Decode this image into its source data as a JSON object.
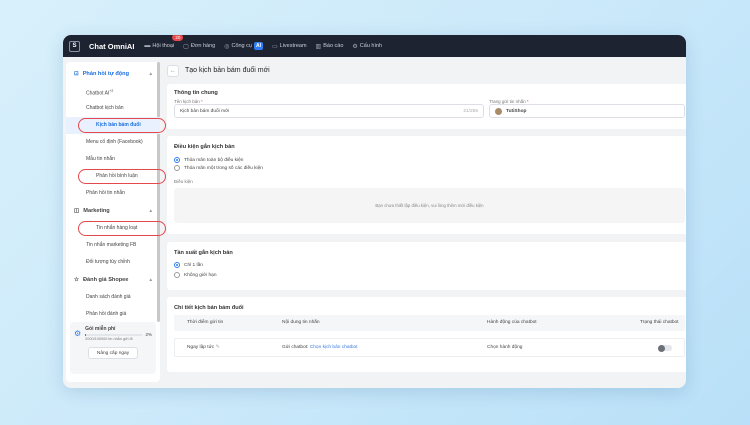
{
  "header": {
    "brand": "Chat OmniAI",
    "nav": [
      {
        "label": "Hội thoại",
        "icon": "chat-icon",
        "badge": "20"
      },
      {
        "label": "Đơn hàng",
        "icon": "order-icon"
      },
      {
        "label": "Công cụ",
        "icon": "tool-icon",
        "tag": "AI"
      },
      {
        "label": "Livestream",
        "icon": "video-icon"
      },
      {
        "label": "Báo cáo",
        "icon": "chart-icon"
      },
      {
        "label": "Cấu hình",
        "icon": "gear-icon"
      }
    ]
  },
  "sidebar": {
    "groups": [
      {
        "label": "Phản hồi tự động",
        "items": [
          "Chatbot AI",
          "Chatbot kịch bản",
          "Kịch bản bám đuổi",
          "Menu cố định (Facebook)",
          "Mẫu tin nhắn",
          "Phản hồi bình luận",
          "Phản hồi tin nhắn"
        ]
      },
      {
        "label": "Marketing",
        "items": [
          "Tin nhắn hàng loạt",
          "Tin nhắn marketing FB",
          "Đối tượng tùy chỉnh"
        ]
      },
      {
        "label": "Đánh giá Shopee",
        "items": [
          "Danh sách đánh giá",
          "Phản hồi đánh giá"
        ]
      }
    ],
    "ai_sup": "+2",
    "plan": {
      "title": "Gói miễn phí",
      "percent": "2%",
      "progress": 2,
      "usage": "2000/100000 tin nhắn gửi đi",
      "upgrade": "Nâng cấp ngay"
    }
  },
  "page": {
    "title": "Tạo kịch bản bám đuổi mới",
    "general": {
      "title": "Thông tin chung",
      "name_label": "Tên kịch bản",
      "name_value": "Kịch bản bám đuổi mới",
      "name_count": "21/255",
      "page_label": "Trang gửi tin nhắn",
      "page_value": "TutiShop",
      "required": "*"
    },
    "conditions": {
      "title": "Điều kiện gắn kịch bản",
      "options": [
        "Thỏa mãn toàn bộ điều kiện",
        "Thỏa mãn một trong số các điều kiện"
      ],
      "selected": 0,
      "cond_label": "Điều kiện",
      "empty": "Bạn chưa thiết lập điều kiện, vui lòng thêm mới điều kiện"
    },
    "frequency": {
      "title": "Tần suất gắn kịch bản",
      "options": [
        "Chỉ 1 lần",
        "Không giới hạn"
      ],
      "selected": 0
    },
    "details": {
      "title": "Chi tiết kịch bản bám đuổi",
      "columns": [
        "Thời điểm gửi tin",
        "Nội dung tin nhắn",
        "Hành động của chatbot",
        "Trạng thái chatbot"
      ],
      "row": {
        "time": "Ngay lập tức",
        "content_prefix": "Gửi chatbot:",
        "content_link": "Chọn kịch bản chatbot",
        "action": "Chọn hành động",
        "status_on": false
      }
    }
  }
}
